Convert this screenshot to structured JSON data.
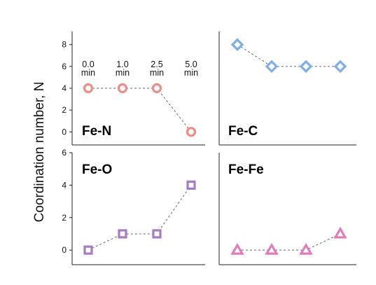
{
  "chart_data": {
    "type": "scatter",
    "ylabel": "Coordination number, N",
    "x_categories": [
      "0.0 min",
      "1.0 min",
      "2.5 min",
      "5.0 min"
    ],
    "panels": [
      {
        "label": "Fe-N",
        "marker": "circle",
        "color": "#f08c84",
        "x": [
          0.0,
          1.0,
          2.5,
          5.0
        ],
        "values": [
          4,
          4,
          4,
          0
        ],
        "ylim": [
          -1,
          9.5
        ],
        "yticks": [
          0,
          2,
          4,
          6,
          8
        ],
        "show_time_labels": true
      },
      {
        "label": "Fe-C",
        "marker": "diamond",
        "color": "#7eaee6",
        "x": [
          0.0,
          1.0,
          2.5,
          5.0
        ],
        "values": [
          8,
          6,
          6,
          6
        ],
        "ylim": [
          -1,
          9.5
        ],
        "yticks": [],
        "show_time_labels": false
      },
      {
        "label": "Fe-O",
        "marker": "square",
        "color": "#a57cc6",
        "x": [
          0.0,
          1.0,
          2.5,
          5.0
        ],
        "values": [
          0,
          1,
          1,
          4
        ],
        "ylim": [
          -0.5,
          6
        ],
        "yticks": [
          0,
          2,
          4,
          6
        ],
        "show_time_labels": false
      },
      {
        "label": "Fe-Fe",
        "marker": "triangle",
        "color": "#e07cba",
        "x": [
          0.0,
          1.0,
          2.5,
          5.0
        ],
        "values": [
          0,
          0,
          0,
          1
        ],
        "ylim": [
          -0.5,
          6
        ],
        "yticks": [],
        "show_time_labels": false
      }
    ]
  }
}
